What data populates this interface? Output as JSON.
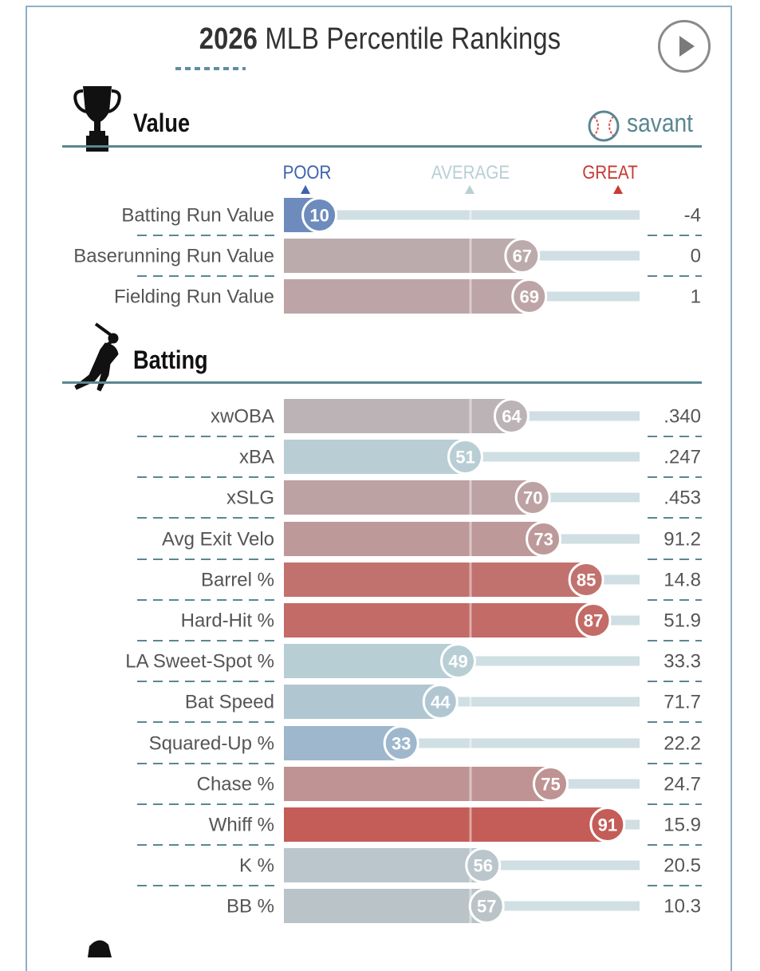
{
  "header": {
    "title_year": "2026",
    "title_rest": " MLB Percentile Rankings",
    "play_icon": "play-icon"
  },
  "branding": {
    "savant_text": "savant",
    "logo_icon": "baseball-icon"
  },
  "scale": {
    "poor": "POOR",
    "average": "AVERAGE",
    "great": "GREAT"
  },
  "colors": {
    "poor": "#3e62ad",
    "average": "#b9cfd5",
    "great": "#c73b32",
    "track": "#cfdfe3",
    "rule": "#5a8791"
  },
  "sections": [
    {
      "title": "Value",
      "icon": "trophy-icon"
    },
    {
      "title": "Batting",
      "icon": "batter-icon"
    }
  ],
  "chart_data": [
    {
      "type": "bar",
      "title": "Value",
      "xlim": [
        0,
        100
      ],
      "categories": [
        "Batting Run Value",
        "Baserunning Run Value",
        "Fielding Run Value"
      ],
      "percentiles": [
        10,
        67,
        69
      ],
      "stat_values": [
        "-4",
        "0",
        "1"
      ]
    },
    {
      "type": "bar",
      "title": "Batting",
      "xlim": [
        0,
        100
      ],
      "categories": [
        "xwOBA",
        "xBA",
        "xSLG",
        "Avg Exit Velo",
        "Barrel %",
        "Hard-Hit %",
        "LA Sweet-Spot %",
        "Bat Speed",
        "Squared-Up %",
        "Chase %",
        "Whiff %",
        "K %",
        "BB %"
      ],
      "percentiles": [
        64,
        51,
        70,
        73,
        85,
        87,
        49,
        44,
        33,
        75,
        91,
        56,
        57
      ],
      "stat_values": [
        ".340",
        ".247",
        ".453",
        "91.2",
        "14.8",
        "51.9",
        "33.3",
        "71.7",
        "22.2",
        "24.7",
        "15.9",
        "20.5",
        "10.3"
      ]
    }
  ]
}
